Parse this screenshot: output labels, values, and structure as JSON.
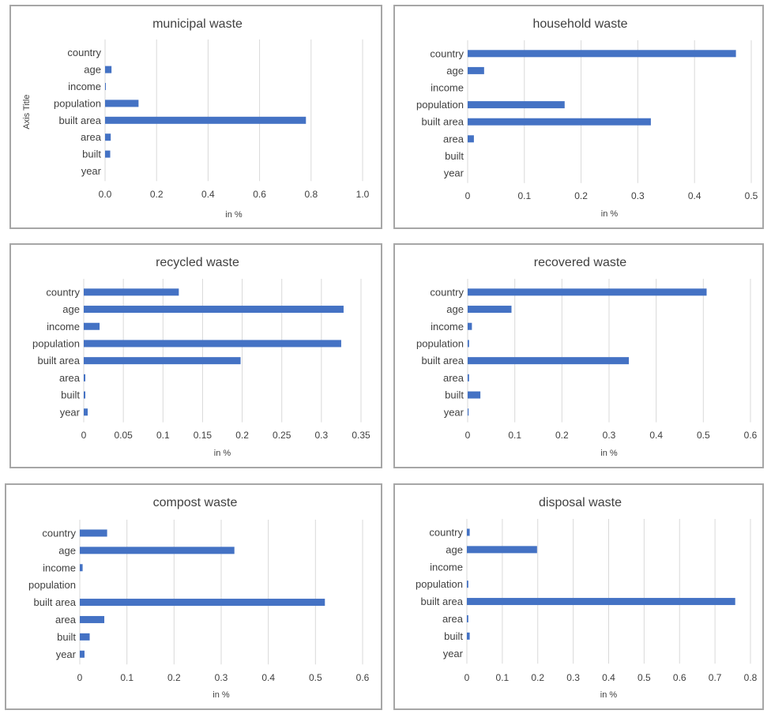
{
  "colors": {
    "bar": "#4472c4",
    "grid": "#d9d9d9",
    "text": "#404040",
    "border": "#a6a6a6"
  },
  "chart_data": [
    {
      "type": "bar",
      "orientation": "horizontal",
      "title": "municipal waste",
      "xlabel": "in %",
      "ylabel": "Axis Title",
      "categories": [
        "country",
        "age",
        "income",
        "population",
        "built area",
        "area",
        "built",
        "year"
      ],
      "values": [
        0.0,
        0.025,
        0.003,
        0.13,
        0.78,
        0.022,
        0.02,
        0.0
      ],
      "xlim": [
        0,
        1.0
      ],
      "ticks": [
        "0.0",
        "0.2",
        "0.4",
        "0.6",
        "0.8",
        "1.0"
      ],
      "tick_values": [
        0,
        0.2,
        0.4,
        0.6,
        0.8,
        1.0
      ],
      "grid": true
    },
    {
      "type": "bar",
      "orientation": "horizontal",
      "title": "household waste",
      "xlabel": "in %",
      "ylabel": "",
      "categories": [
        "country",
        "age",
        "income",
        "population",
        "built area",
        "area",
        "built",
        "year"
      ],
      "values": [
        0.473,
        0.029,
        0.0,
        0.171,
        0.323,
        0.011,
        0.0,
        0.0
      ],
      "xlim": [
        0,
        0.5
      ],
      "ticks": [
        "0",
        "0.1",
        "0.2",
        "0.3",
        "0.4",
        "0.5"
      ],
      "tick_values": [
        0,
        0.1,
        0.2,
        0.3,
        0.4,
        0.5
      ],
      "grid": true
    },
    {
      "type": "bar",
      "orientation": "horizontal",
      "title": "recycled waste",
      "xlabel": "in %",
      "ylabel": "",
      "categories": [
        "country",
        "age",
        "income",
        "population",
        "built area",
        "area",
        "built",
        "year"
      ],
      "values": [
        0.12,
        0.328,
        0.02,
        0.325,
        0.198,
        0.002,
        0.002,
        0.005
      ],
      "xlim": [
        0,
        0.35
      ],
      "ticks": [
        "0",
        "0.05",
        "0.1",
        "0.15",
        "0.2",
        "0.25",
        "0.3",
        "0.35"
      ],
      "tick_values": [
        0,
        0.05,
        0.1,
        0.15,
        0.2,
        0.25,
        0.3,
        0.35
      ],
      "grid": true
    },
    {
      "type": "bar",
      "orientation": "horizontal",
      "title": "recovered waste",
      "xlabel": "in %",
      "ylabel": "",
      "categories": [
        "country",
        "age",
        "income",
        "population",
        "built area",
        "area",
        "built",
        "year"
      ],
      "values": [
        0.507,
        0.093,
        0.009,
        0.003,
        0.342,
        0.003,
        0.027,
        0.002
      ],
      "xlim": [
        0,
        0.6
      ],
      "ticks": [
        "0",
        "0.1",
        "0.2",
        "0.3",
        "0.4",
        "0.5",
        "0.6"
      ],
      "tick_values": [
        0,
        0.1,
        0.2,
        0.3,
        0.4,
        0.5,
        0.6
      ],
      "grid": true
    },
    {
      "type": "bar",
      "orientation": "horizontal",
      "title": "compost waste",
      "xlabel": "in %",
      "ylabel": "",
      "categories": [
        "country",
        "age",
        "income",
        "population",
        "built area",
        "area",
        "built",
        "year"
      ],
      "values": [
        0.058,
        0.328,
        0.006,
        0.0,
        0.52,
        0.052,
        0.021,
        0.01
      ],
      "xlim": [
        0,
        0.6
      ],
      "ticks": [
        "0",
        "0.1",
        "0.2",
        "0.3",
        "0.4",
        "0.5",
        "0.6"
      ],
      "tick_values": [
        0,
        0.1,
        0.2,
        0.3,
        0.4,
        0.5,
        0.6
      ],
      "grid": true
    },
    {
      "type": "bar",
      "orientation": "horizontal",
      "title": "disposal waste",
      "xlabel": "in %",
      "ylabel": "",
      "categories": [
        "country",
        "age",
        "income",
        "population",
        "built area",
        "area",
        "built",
        "year"
      ],
      "values": [
        0.008,
        0.198,
        0.0,
        0.004,
        0.757,
        0.004,
        0.008,
        0.0
      ],
      "xlim": [
        0,
        0.8
      ],
      "ticks": [
        "0",
        "0.1",
        "0.2",
        "0.3",
        "0.4",
        "0.5",
        "0.6",
        "0.7",
        "0.8"
      ],
      "tick_values": [
        0,
        0.1,
        0.2,
        0.3,
        0.4,
        0.5,
        0.6,
        0.7,
        0.8
      ],
      "grid": true
    }
  ]
}
